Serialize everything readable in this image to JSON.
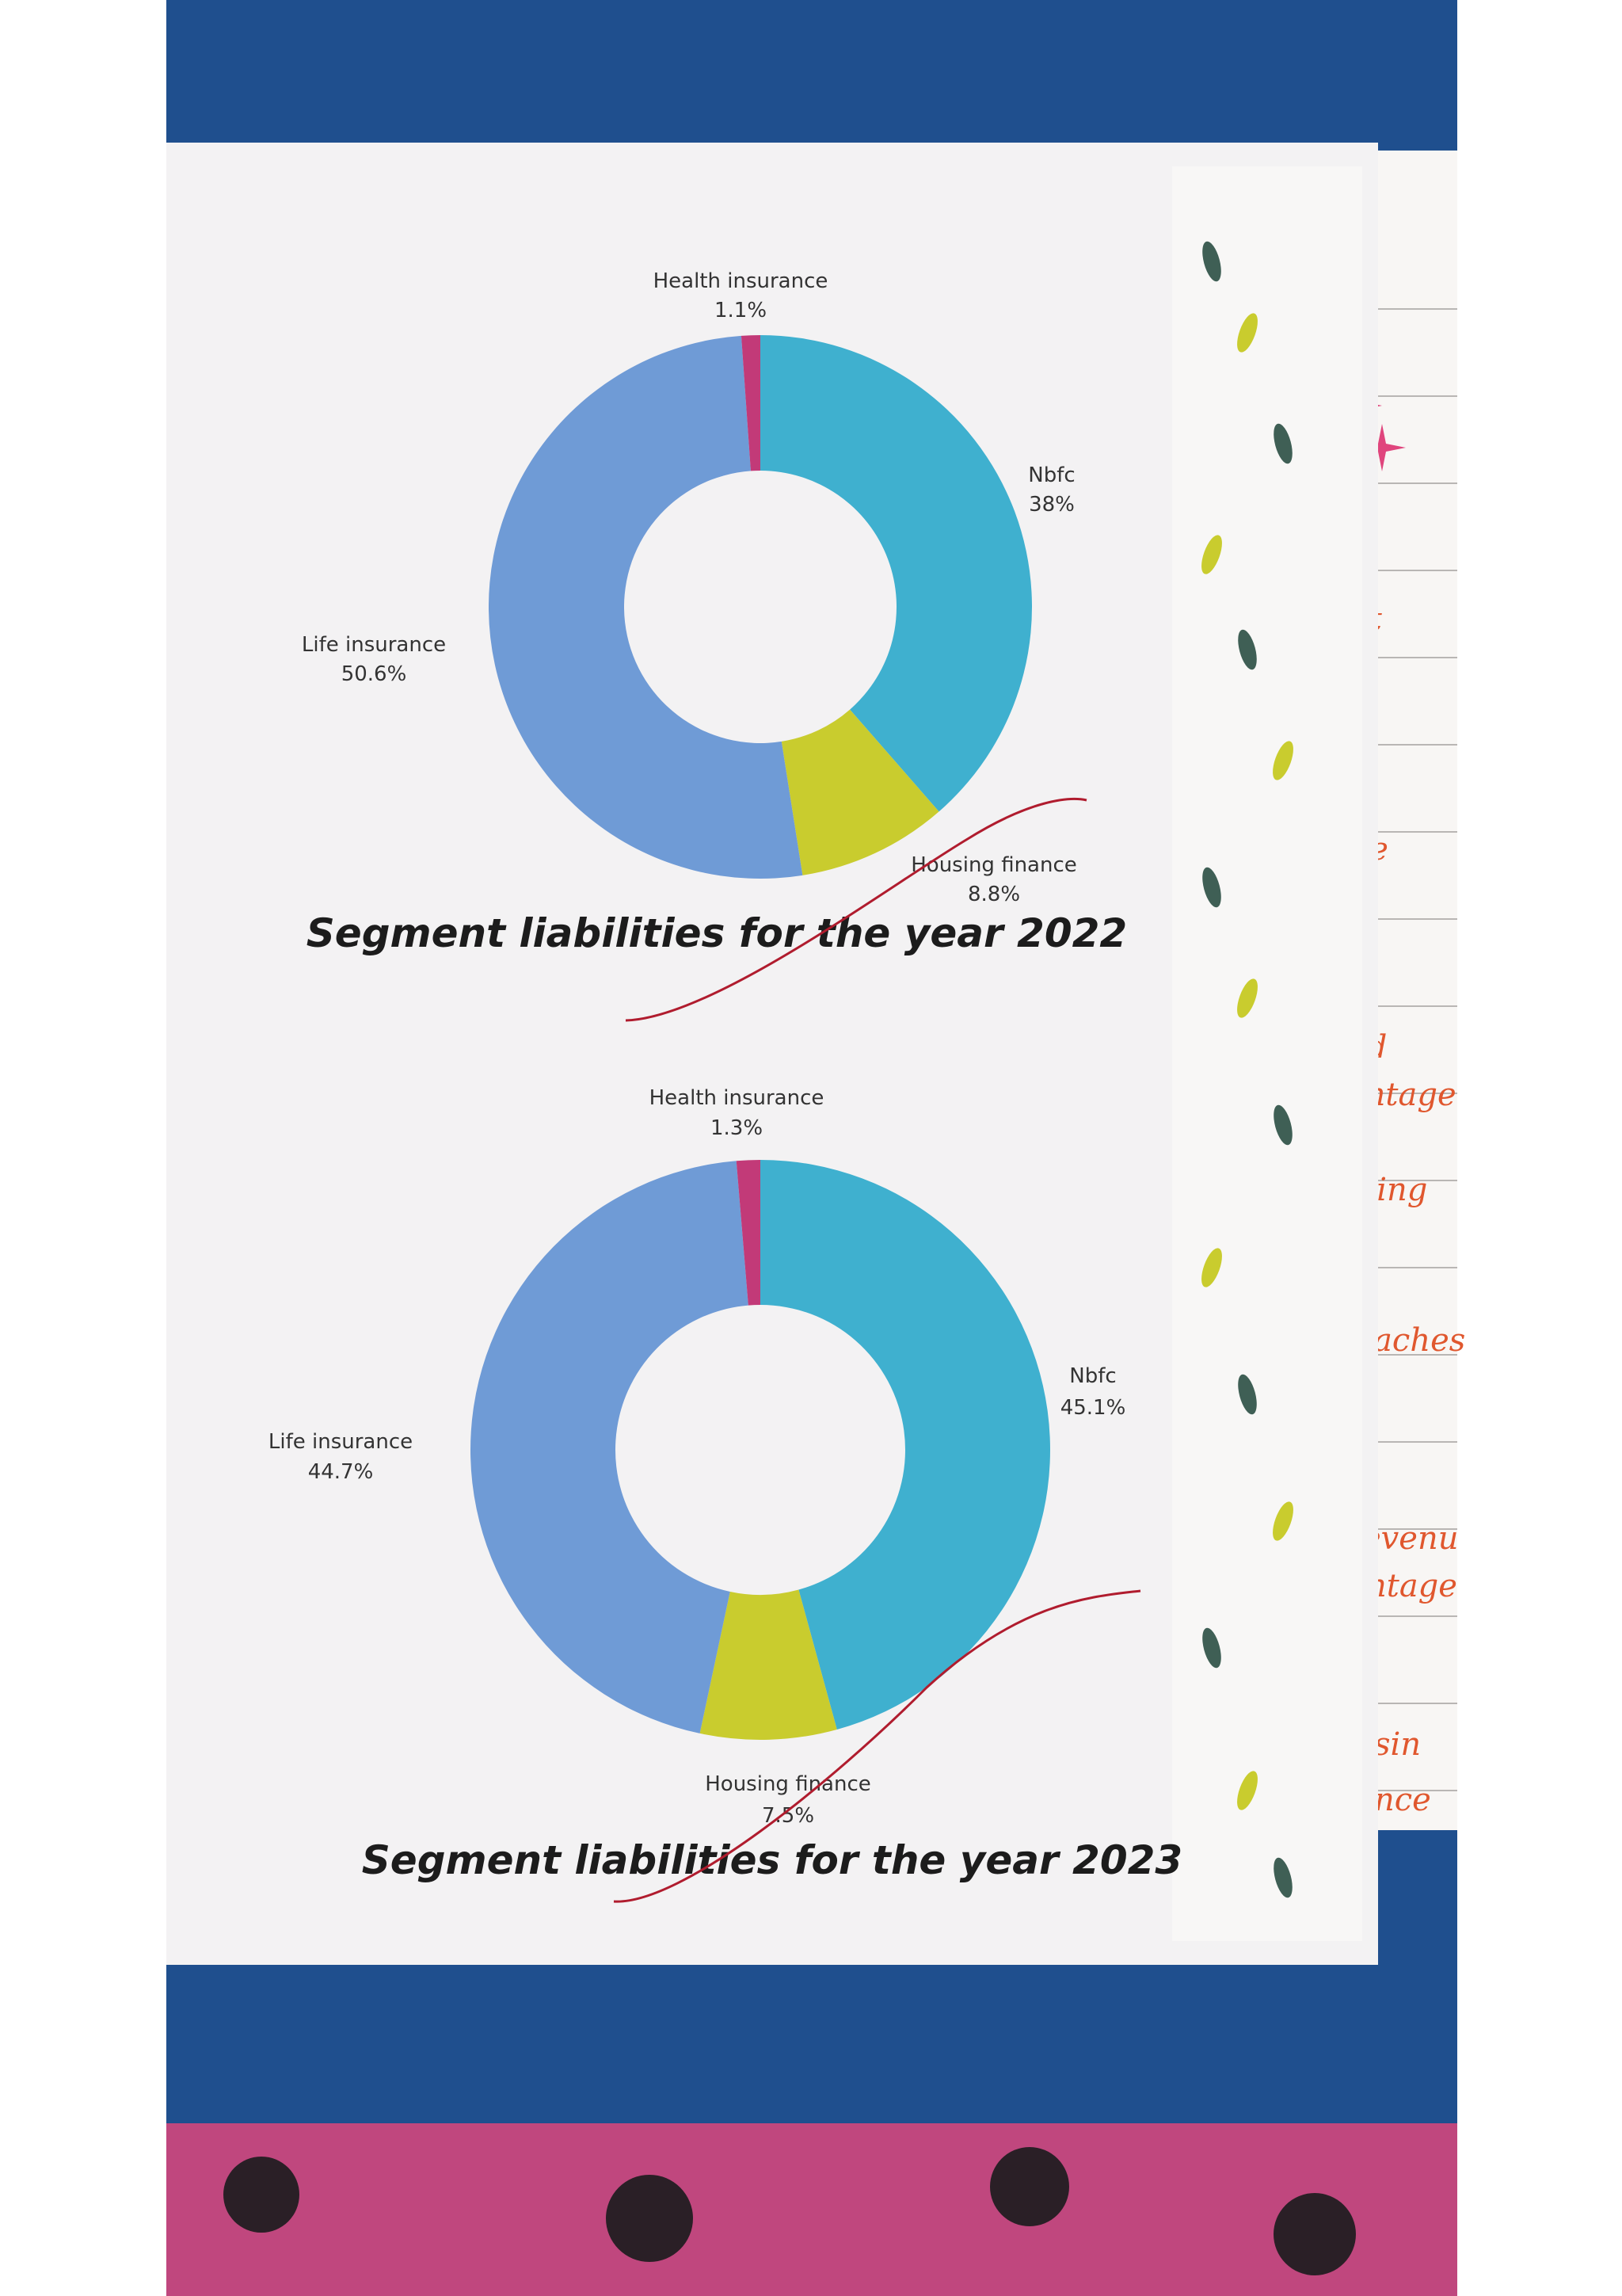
{
  "colors": {
    "nbfc": "#3fb0cf",
    "housing": "#c9cc2e",
    "life": "#6f9bd6",
    "health": "#c23a78"
  },
  "chart_data": [
    {
      "type": "pie",
      "style": "donut",
      "title": "Segment liabilities for the year 2022",
      "labels": [
        "Nbfc",
        "Housing finance",
        "Life insurance",
        "Health insurance"
      ],
      "values": [
        38,
        8.8,
        50.6,
        1.1
      ],
      "value_labels": [
        "38%",
        "8.8%",
        "50.6%",
        "1.1%"
      ],
      "legend": "none"
    },
    {
      "type": "pie",
      "style": "donut",
      "title": "Segment liabilities for the year 2023",
      "labels": [
        "Nbfc",
        "Housing finance",
        "Life insurance",
        "Health insurance"
      ],
      "values": [
        45.1,
        7.5,
        44.7,
        1.3
      ],
      "value_labels": [
        "45.1%",
        "7.5%",
        "44.7%",
        "1.3%"
      ],
      "legend": "none"
    }
  ],
  "background_notes": {
    "fragments": [
      "ofit",
      "ue",
      "ke",
      "nd",
      "entage",
      "rring",
      "oaches",
      "evenu",
      "ntage",
      "sin",
      "nce"
    ]
  }
}
